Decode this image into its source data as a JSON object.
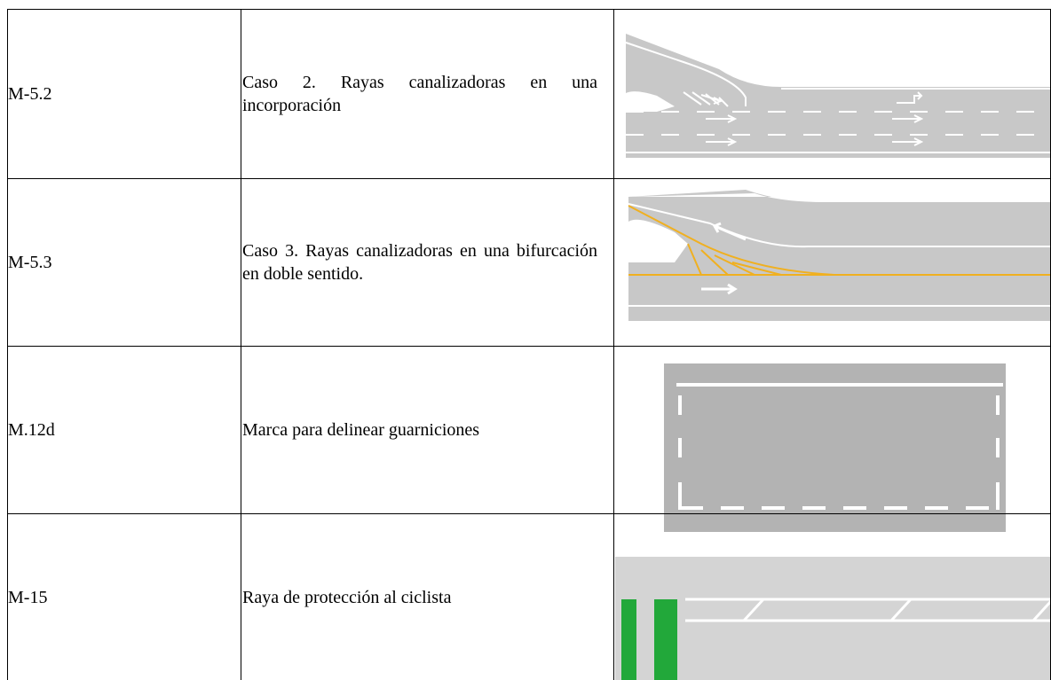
{
  "table": {
    "rows": [
      [
        "M-5.2",
        "Caso 2. Rayas canalizadoras en una incorporación"
      ],
      [
        "M-5.3",
        "Caso 3. Rayas canalizadoras en una bifurcación en doble sentido."
      ],
      [
        "M.12d",
        "Marca para delinear guarniciones"
      ],
      [
        "M-15",
        "Raya de protección al ciclista"
      ]
    ]
  }
}
